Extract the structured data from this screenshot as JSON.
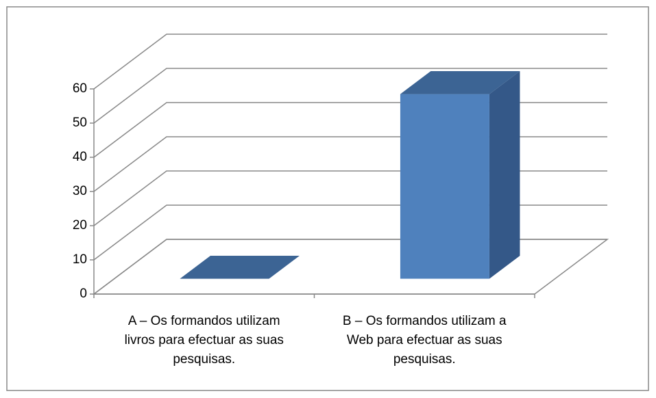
{
  "chart_data": {
    "type": "bar3d",
    "categories": [
      "A – Os formandos utilizam livros para efectuar as suas pesquisas.",
      "B – Os formandos utilizam a Web para efectuar as suas pesquisas."
    ],
    "values": [
      0,
      54
    ],
    "color": "#4f81bd",
    "ylim": [
      0,
      60
    ],
    "yticks": [
      0,
      10,
      20,
      30,
      40,
      50,
      60
    ],
    "grid": true
  }
}
